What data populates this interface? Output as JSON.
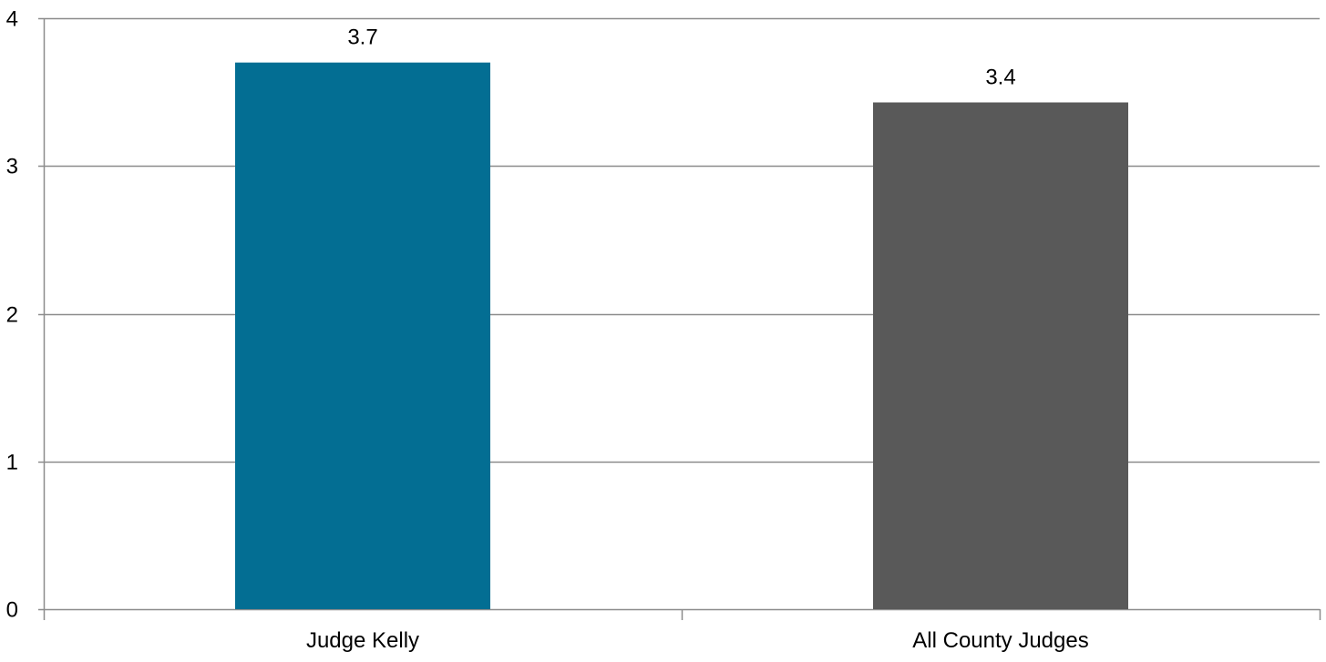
{
  "chart_data": {
    "type": "bar",
    "categories": [
      "Judge Kelly",
      "All County Judges"
    ],
    "values": [
      3.7,
      3.43
    ],
    "data_labels": [
      "3.7",
      "3.4"
    ],
    "colors": [
      "#036e93",
      "#595959"
    ],
    "ylim": [
      0,
      4
    ],
    "yticks": [
      "0",
      "1",
      "2",
      "3",
      "4"
    ],
    "title": "",
    "xlabel": "",
    "ylabel": "",
    "grid": true,
    "legend": "none"
  },
  "style": {
    "grid_color": "#8c8c8c",
    "axis_color": "#8c8c8c"
  }
}
